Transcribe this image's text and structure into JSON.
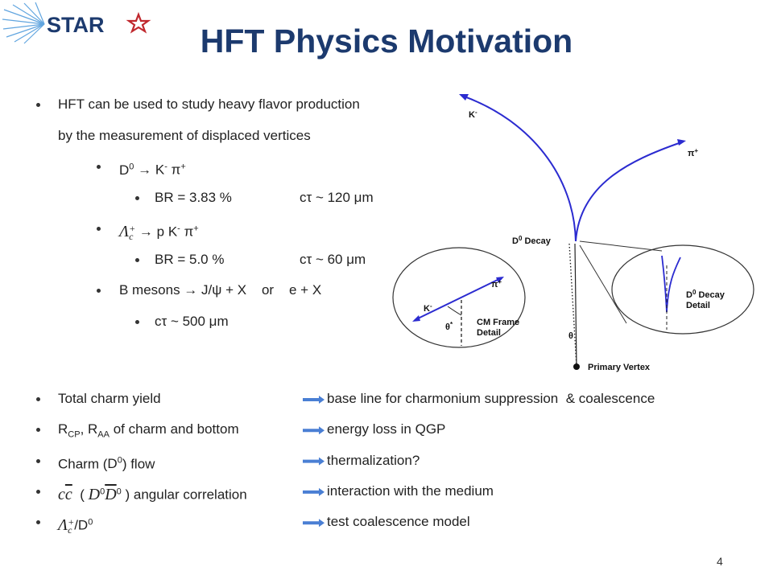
{
  "logo": "STAR",
  "title": "HFT Physics Motivation",
  "points": [
    {
      "lines": [
        [
          "HFT can be used to study heavy flavor production"
        ],
        [
          "by the measurement of displaced vertices"
        ]
      ],
      "children": [
        {
          "lines": [
            [
              {
                "base": "D",
                "sup": "0"
              },
              " → K",
              {
                "sup": "-"
              },
              " π",
              {
                "sup": "+"
              }
            ]
          ],
          "children": [
            {
              "lines": [
                [
                  "BR = 3.83 %"
                ]
              ],
              "aside": [
                "cτ ~ 120 μm"
              ]
            }
          ]
        },
        {
          "lines": [
            [
              {
                "math": "Λ",
                "sub": "c",
                "sup": "+"
              },
              " → p K",
              {
                "sup": "-"
              },
              " π",
              {
                "sup": "+"
              }
            ]
          ],
          "children": [
            {
              "lines": [
                [
                  "BR = 5.0 %"
                ]
              ],
              "aside": [
                "cτ ~ 60 μm"
              ]
            }
          ]
        },
        {
          "lines": [
            [
              "B mesons → J/ψ + X    or    e + X"
            ]
          ],
          "children": [
            {
              "lines": [
                [
                  "cτ ~ 500 μm"
                ]
              ]
            }
          ]
        }
      ]
    }
  ],
  "effects": [
    {
      "cause": [
        "Total charm yield"
      ],
      "effect": "base line for charmonium suppression  & coalescence"
    },
    {
      "cause": [
        {
          "base": "R",
          "sub": "CP"
        },
        ", ",
        {
          "base": "R",
          "sub": "AA"
        },
        " of charm and bottom"
      ],
      "effect": "energy loss in QGP"
    },
    {
      "cause": [
        "Charm (",
        {
          "base": "D",
          "sup": "0"
        },
        ") flow"
      ],
      "effect": "thermalization?"
    },
    {
      "cause": [
        {
          "math": "c"
        },
        {
          "over": "c"
        },
        "  ( ",
        {
          "math": "D",
          "sup": "0"
        },
        {
          "over": "D",
          "sup": "0"
        },
        " ) angular correlation"
      ],
      "effect": "interaction with the medium"
    },
    {
      "cause": [
        {
          "math": "Λ",
          "sub": "c",
          "sup": "+"
        },
        "/D",
        {
          "sup": "0"
        }
      ],
      "effect": "test coalescence model"
    }
  ],
  "diagram": {
    "k_minus": [
      {
        "base": "K",
        "sup": "-"
      }
    ],
    "pi_plus": [
      {
        "base": "π",
        "sup": "+"
      }
    ],
    "decay": [
      {
        "base": "D",
        "sup": "0"
      },
      " Decay"
    ],
    "theta": "θ",
    "vertex": "Primary Vertex",
    "cm_k": [
      {
        "base": "K",
        "sup": "-"
      }
    ],
    "cm_pi": [
      {
        "base": "π",
        "sup": "+"
      }
    ],
    "cm_theta": [
      {
        "base": "θ",
        "sup": "*"
      }
    ],
    "cm_detail": [
      "CM Frame",
      "Detail"
    ],
    "decay_detail": [
      [
        {
          "base": "D",
          "sup": "0"
        },
        " Decay"
      ],
      [
        "Detail"
      ]
    ]
  },
  "page": "4"
}
